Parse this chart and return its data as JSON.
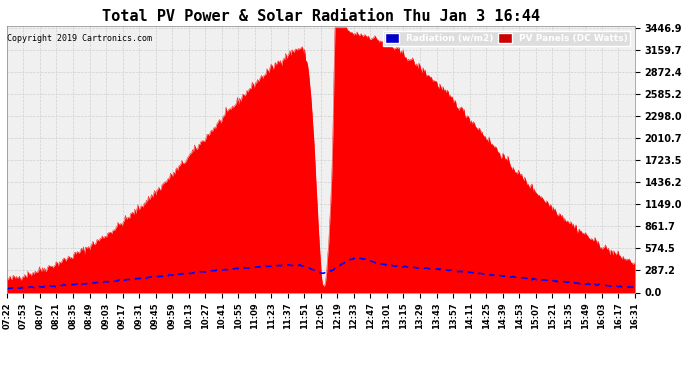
{
  "title": "Total PV Power & Solar Radiation Thu Jan 3 16:44",
  "copyright": "Copyright 2019 Cartronics.com",
  "legend_radiation": "Radiation (w/m2)",
  "legend_pv": "PV Panels (DC Watts)",
  "legend_radiation_bg": "#0000cc",
  "legend_pv_bg": "#cc0000",
  "y_max": 3446.9,
  "y_ticks": [
    0.0,
    287.2,
    574.5,
    861.7,
    1149.0,
    1436.2,
    1723.5,
    2010.7,
    2298.0,
    2585.2,
    2872.4,
    3159.7,
    3446.9
  ],
  "bg_color": "#ffffff",
  "plot_bg_color": "#f0f0f0",
  "grid_color": "#cccccc",
  "pv_color": "#ff0000",
  "radiation_color": "#0000ff",
  "x_labels": [
    "07:22",
    "07:53",
    "08:07",
    "08:21",
    "08:35",
    "08:49",
    "09:03",
    "09:17",
    "09:31",
    "09:45",
    "09:59",
    "10:13",
    "10:27",
    "10:41",
    "10:55",
    "11:09",
    "11:23",
    "11:37",
    "11:51",
    "12:05",
    "12:19",
    "12:33",
    "12:47",
    "13:01",
    "13:15",
    "13:29",
    "13:43",
    "13:57",
    "14:11",
    "14:25",
    "14:39",
    "14:53",
    "15:07",
    "15:21",
    "15:35",
    "15:49",
    "16:03",
    "16:17",
    "16:31"
  ],
  "num_points": 600
}
